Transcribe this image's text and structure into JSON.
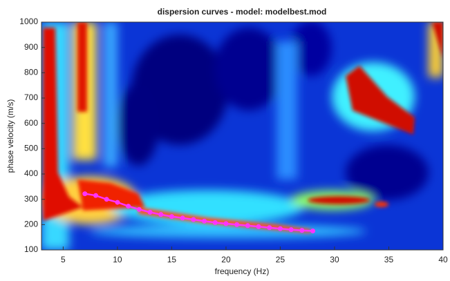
{
  "chart_data": {
    "type": "line",
    "title": "dispersion curves - model: modelbest.mod",
    "xlabel": "frequency (Hz)",
    "ylabel": "phase velocity (m/s)",
    "xlim": [
      3,
      40
    ],
    "ylim": [
      100,
      1000
    ],
    "xticks": [
      5,
      10,
      15,
      20,
      25,
      30,
      35,
      40
    ],
    "yticks": [
      100,
      200,
      300,
      400,
      500,
      600,
      700,
      800,
      900,
      1000
    ],
    "x": [
      7,
      8,
      9,
      10,
      11,
      12,
      13,
      14,
      15,
      16,
      17,
      18,
      19,
      20,
      21,
      22,
      23,
      24,
      25,
      26,
      27,
      28
    ],
    "values": [
      322,
      315,
      300,
      288,
      273,
      260,
      249,
      240,
      232,
      226,
      220,
      214,
      208,
      204,
      200,
      196,
      192,
      188,
      184,
      180,
      177,
      175
    ],
    "color": "#ff33ff"
  }
}
